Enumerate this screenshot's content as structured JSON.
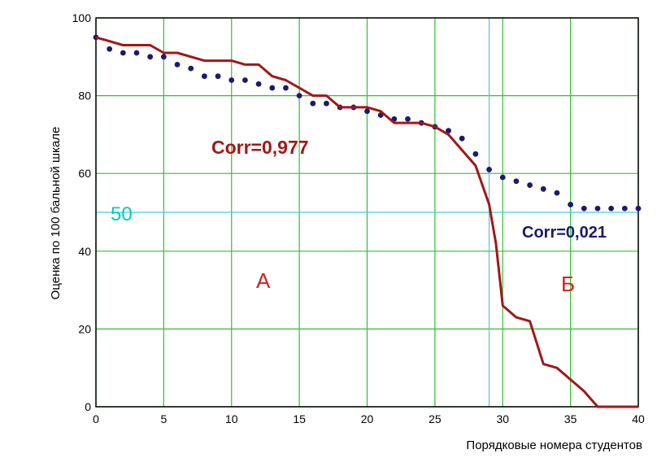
{
  "chart_data": {
    "type": "line",
    "xlabel": "Порядковые номера студентов",
    "ylabel": "Оценка по 100 бальной шкале",
    "xlim": [
      0,
      40
    ],
    "ylim": [
      0,
      100
    ],
    "x_ticks": [
      "0",
      "5",
      "10",
      "15",
      "20",
      "25",
      "30",
      "35",
      "40"
    ],
    "y_ticks": [
      "0",
      "20",
      "40",
      "60",
      "80",
      "100"
    ],
    "grid": true,
    "series": [
      {
        "style": "line",
        "color": "#a01818",
        "x": [
          0,
          2,
          4,
          5,
          6,
          8,
          9,
          10,
          11,
          12,
          13,
          14,
          15,
          16,
          17,
          18,
          19,
          20,
          21,
          22,
          23,
          24,
          25,
          26,
          27,
          28,
          29,
          29.5,
          30,
          31,
          32,
          33,
          34,
          35,
          36,
          37,
          38,
          39,
          40
        ],
        "y": [
          95,
          93,
          93,
          91,
          91,
          89,
          89,
          89,
          88,
          88,
          85,
          84,
          82,
          80,
          80,
          77,
          77,
          77,
          76,
          73,
          73,
          73,
          72,
          70,
          66,
          62,
          52,
          42,
          26,
          23,
          22,
          11,
          10,
          7,
          4,
          0,
          0,
          0,
          0
        ]
      },
      {
        "style": "dots",
        "color": "#1a1a6e",
        "x": [
          0,
          1,
          2,
          3,
          4,
          5,
          6,
          7,
          8,
          9,
          10,
          11,
          12,
          13,
          14,
          15,
          16,
          17,
          18,
          19,
          20,
          21,
          22,
          23,
          24,
          25,
          26,
          27,
          28,
          29,
          30,
          31,
          32,
          33,
          34,
          35,
          36,
          37,
          38,
          39,
          40
        ],
        "y": [
          95,
          92,
          91,
          91,
          90,
          90,
          88,
          87,
          85,
          85,
          84,
          84,
          83,
          82,
          82,
          80,
          78,
          78,
          77,
          77,
          76,
          75,
          74,
          74,
          73,
          72,
          71,
          69,
          65,
          61,
          59,
          58,
          57,
          56,
          55,
          52,
          51,
          51,
          51,
          51,
          51
        ]
      }
    ],
    "annotations": [
      {
        "text": "Corr=0,977",
        "color": "#a01818"
      },
      {
        "text": "Corr=0,021",
        "color": "#1a1a6e"
      },
      {
        "text": "А",
        "color": "#d42020"
      },
      {
        "text": "Б",
        "color": "#d42020"
      },
      {
        "text": "50",
        "color": "#00c8c8"
      }
    ],
    "reference_lines": [
      {
        "axis": "y",
        "value": 50,
        "color": "#40d0e0"
      },
      {
        "axis": "x",
        "value": 29,
        "color": "#70b8e8"
      }
    ],
    "colors": {
      "grid": "#30c030",
      "frame": "#000000"
    }
  }
}
